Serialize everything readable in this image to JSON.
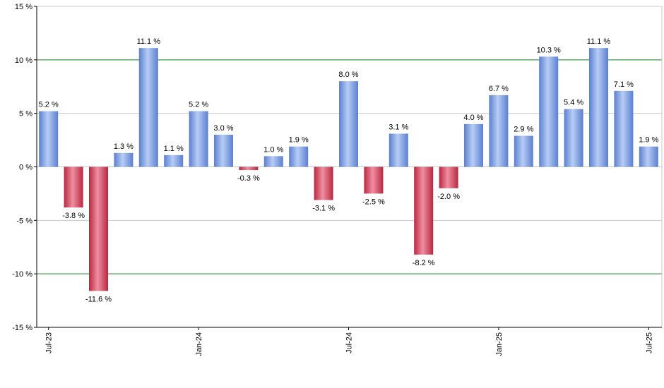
{
  "chart_data": {
    "type": "bar",
    "title": "",
    "xlabel": "",
    "ylabel": "",
    "ylim": [
      -15,
      15
    ],
    "y_ticks": [
      {
        "value": 15,
        "label": "15 %"
      },
      {
        "value": 10,
        "label": "10 %"
      },
      {
        "value": 5,
        "label": "5 %"
      },
      {
        "value": 0,
        "label": "0 %"
      },
      {
        "value": -5,
        "label": "-5 %"
      },
      {
        "value": -10,
        "label": "-10 %"
      },
      {
        "value": -15,
        "label": "-15 %"
      }
    ],
    "x_ticks": [
      {
        "index": 0,
        "label": "Jul-23"
      },
      {
        "index": 6,
        "label": "Jan-24"
      },
      {
        "index": 12,
        "label": "Jul-24"
      },
      {
        "index": 18,
        "label": "Jan-25"
      },
      {
        "index": 24,
        "label": "Jul-25"
      }
    ],
    "categories": [
      "Jul-23",
      "Aug-23",
      "Sep-23",
      "Oct-23",
      "Nov-23",
      "Dec-23",
      "Jan-24",
      "Feb-24",
      "Mar-24",
      "Apr-24",
      "May-24",
      "Jun-24",
      "Jul-24",
      "Aug-24",
      "Sep-24",
      "Oct-24",
      "Nov-24",
      "Dec-24",
      "Jan-25",
      "Feb-25",
      "Mar-25",
      "Apr-25",
      "May-25",
      "Jun-25",
      "Jul-25"
    ],
    "values": [
      5.2,
      -3.8,
      -11.6,
      1.3,
      11.1,
      1.1,
      5.2,
      3.0,
      -0.3,
      1.0,
      1.9,
      -3.1,
      8.0,
      -2.5,
      3.1,
      -8.2,
      -2.0,
      4.0,
      6.7,
      2.9,
      10.3,
      5.4,
      11.1,
      7.1,
      1.9
    ],
    "labels": [
      "5.2 %",
      "-3.8 %",
      "-11.6 %",
      "1.3 %",
      "11.1 %",
      "1.1 %",
      "5.2 %",
      "3.0 %",
      "-0.3 %",
      "1.0 %",
      "1.9 %",
      "-3.1 %",
      "8.0 %",
      "-2.5 %",
      "3.1 %",
      "-8.2 %",
      "-2.0 %",
      "4.0 %",
      "6.7 %",
      "2.9 %",
      "10.3 %",
      "5.4 %",
      "11.1 %",
      "7.1 %",
      "1.9 %"
    ],
    "grid": true,
    "highlight_lines": [
      10,
      -10
    ],
    "colors": {
      "positive_light": "#b7cdf6",
      "positive_dark": "#5b7fd0",
      "negative_light": "#f08ea2",
      "negative_dark": "#b8283f",
      "grid": "#c8c8c8",
      "highlight": "#1f7a1f",
      "axis": "#000000"
    }
  }
}
